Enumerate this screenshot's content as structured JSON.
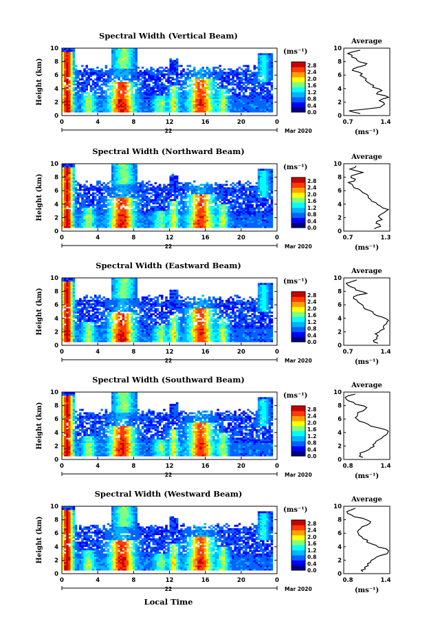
{
  "figure": {
    "footer_date": "Mar 2020",
    "x_label": "Local Time",
    "y_label": "Height (km)",
    "day_label": "22",
    "colorbar_unit": "(ms⁻¹)",
    "profile_title": "Average",
    "profile_unit": "(ms⁻¹)",
    "x_ticks": [
      "0",
      "4",
      "8",
      "12",
      "16",
      "20",
      "0"
    ],
    "y_ticks": [
      "0",
      "2",
      "4",
      "6",
      "8",
      "10"
    ],
    "profile_y_ticks": [
      "0",
      "2",
      "4",
      "6",
      "8",
      "10"
    ],
    "colorbar_ticks": [
      "0.0",
      "0.4",
      "0.8",
      "1.2",
      "1.6",
      "2.0",
      "2.4",
      "2.8"
    ]
  },
  "colors": {
    "jet": [
      "#00007f",
      "#0000ff",
      "#0064ff",
      "#00b4ff",
      "#00ffff",
      "#7fff7f",
      "#ffff00",
      "#ffa000",
      "#ff3c00",
      "#c80000"
    ]
  },
  "chart_data": [
    {
      "type": "heatmap",
      "title": "Spectral Width (Vertical Beam)",
      "xlabel": "Local Time",
      "ylabel": "Height (km)",
      "xlim": [
        0,
        24
      ],
      "ylim": [
        0,
        10
      ],
      "clim": [
        0,
        3.0
      ],
      "colorbar_label": "(ms⁻¹)",
      "colorbar_ticks": [
        "0.0",
        "0.4",
        "0.8",
        "1.2",
        "1.6",
        "2.0",
        "2.4",
        "2.8"
      ],
      "date": "Mar 2020",
      "day": "22",
      "profile": {
        "title": "Average",
        "xlabel": "(ms⁻¹)",
        "xlim": [
          0.7,
          1.4
        ],
        "x_ticks": [
          "0.7",
          "1.4"
        ],
        "height_km": [
          0.3,
          0.7,
          1.2,
          1.7,
          2.2,
          2.7,
          3.2,
          3.7,
          4.2,
          4.7,
          5.2,
          5.7,
          6.2,
          6.7,
          7.2,
          7.7,
          8.2,
          8.7,
          9.2,
          9.7
        ],
        "values": [
          0.95,
          0.78,
          1.25,
          1.32,
          1.24,
          1.38,
          1.2,
          1.28,
          1.14,
          1.1,
          1.03,
          1.0,
          0.98,
          0.83,
          0.92,
          1.05,
          0.9,
          0.82,
          0.76,
          0.95
        ]
      }
    },
    {
      "type": "heatmap",
      "title": "Spectral Width (Northward Beam)",
      "xlabel": "Local Time",
      "ylabel": "Height (km)",
      "xlim": [
        0,
        24
      ],
      "ylim": [
        0,
        10
      ],
      "clim": [
        0,
        3.0
      ],
      "colorbar_label": "(ms⁻¹)",
      "colorbar_ticks": [
        "0.0",
        "0.4",
        "0.8",
        "1.2",
        "1.6",
        "2.0",
        "2.4",
        "2.8"
      ],
      "date": "Mar 2020",
      "day": "22",
      "profile": {
        "title": "Average",
        "xlabel": "(ms⁻¹)",
        "xlim": [
          0.7,
          1.3
        ],
        "x_ticks": [
          "0.7",
          "1.3"
        ],
        "height_km": [
          0.3,
          0.7,
          1.2,
          1.7,
          2.2,
          2.7,
          3.2,
          3.7,
          4.2,
          4.7,
          5.2,
          5.7,
          6.2,
          6.7,
          7.2,
          7.7,
          8.2,
          8.7,
          9.2,
          9.7
        ],
        "values": [
          1.1,
          1.18,
          1.12,
          1.2,
          1.15,
          1.22,
          1.28,
          1.18,
          1.12,
          1.05,
          1.02,
          0.95,
          0.9,
          0.82,
          0.76,
          0.85,
          0.8,
          0.95,
          0.78,
          0.86
        ]
      }
    },
    {
      "type": "heatmap",
      "title": "Spectral Width (Eastward Beam)",
      "xlabel": "Local Time",
      "ylabel": "Height (km)",
      "xlim": [
        0,
        24
      ],
      "ylim": [
        0,
        10
      ],
      "clim": [
        0,
        3.0
      ],
      "colorbar_label": "(ms⁻¹)",
      "colorbar_ticks": [
        "0.0",
        "0.4",
        "0.8",
        "1.2",
        "1.6",
        "2.0",
        "2.4",
        "2.8"
      ],
      "date": "Mar 2020",
      "day": "22",
      "profile": {
        "title": "Average",
        "xlabel": "(ms⁻¹)",
        "xlim": [
          0.7,
          1.4
        ],
        "x_ticks": [
          "0.7",
          "1.4"
        ],
        "height_km": [
          0.3,
          0.7,
          1.2,
          1.7,
          2.2,
          2.7,
          3.2,
          3.7,
          4.2,
          4.7,
          5.2,
          5.7,
          6.2,
          6.7,
          7.2,
          7.7,
          8.2,
          8.7,
          9.2,
          9.7
        ],
        "values": [
          1.22,
          1.15,
          1.2,
          1.18,
          1.26,
          1.3,
          1.35,
          1.38,
          1.28,
          1.15,
          1.08,
          1.0,
          0.95,
          0.9,
          0.85,
          1.05,
          0.88,
          0.8,
          0.74,
          0.9
        ]
      }
    },
    {
      "type": "heatmap",
      "title": "Spectral Width (Southward Beam)",
      "xlabel": "Local Time",
      "ylabel": "Height (km)",
      "xlim": [
        0,
        24
      ],
      "ylim": [
        0,
        10
      ],
      "clim": [
        0,
        3.0
      ],
      "colorbar_label": "(ms⁻¹)",
      "colorbar_ticks": [
        "0.0",
        "0.4",
        "0.8",
        "1.2",
        "1.6",
        "2.0",
        "2.4",
        "2.8"
      ],
      "date": "Mar 2020",
      "day": "22",
      "profile": {
        "title": "Average",
        "xlabel": "(ms⁻¹)",
        "xlim": [
          0.8,
          1.4
        ],
        "x_ticks": [
          "0.8",
          "1.4"
        ],
        "height_km": [
          0.3,
          0.7,
          1.2,
          1.7,
          2.2,
          2.7,
          3.2,
          3.7,
          4.2,
          4.7,
          5.2,
          5.7,
          6.2,
          6.7,
          7.2,
          7.7,
          8.2,
          8.7,
          9.2,
          9.7
        ],
        "values": [
          1.05,
          1.02,
          1.08,
          1.15,
          1.18,
          1.22,
          1.3,
          1.36,
          1.38,
          1.25,
          1.12,
          1.0,
          0.95,
          0.98,
          1.05,
          1.1,
          0.95,
          0.86,
          0.82,
          0.95
        ]
      }
    },
    {
      "type": "heatmap",
      "title": "Spectral Width (Westward Beam)",
      "xlabel": "Local Time",
      "ylabel": "Height (km)",
      "xlim": [
        0,
        24
      ],
      "ylim": [
        0,
        10
      ],
      "clim": [
        0,
        3.0
      ],
      "colorbar_label": "(ms⁻¹)",
      "colorbar_ticks": [
        "0.0",
        "0.4",
        "0.8",
        "1.2",
        "1.6",
        "2.0",
        "2.4",
        "2.8"
      ],
      "date": "Mar 2020",
      "day": "22",
      "profile": {
        "title": "Average",
        "xlabel": "(ms⁻¹)",
        "xlim": [
          0.8,
          1.4
        ],
        "x_ticks": [
          "0.8",
          "1.4"
        ],
        "height_km": [
          0.3,
          0.7,
          1.2,
          1.7,
          2.2,
          2.7,
          3.2,
          3.7,
          4.2,
          4.7,
          5.2,
          5.7,
          6.2,
          6.7,
          7.2,
          7.7,
          8.2,
          8.7,
          9.2,
          9.7
        ],
        "values": [
          1.05,
          1.08,
          1.12,
          1.15,
          1.2,
          1.28,
          1.38,
          1.35,
          1.22,
          1.1,
          1.05,
          1.0,
          0.98,
          1.02,
          1.1,
          1.15,
          1.05,
          0.9,
          0.84,
          0.95
        ]
      }
    }
  ]
}
